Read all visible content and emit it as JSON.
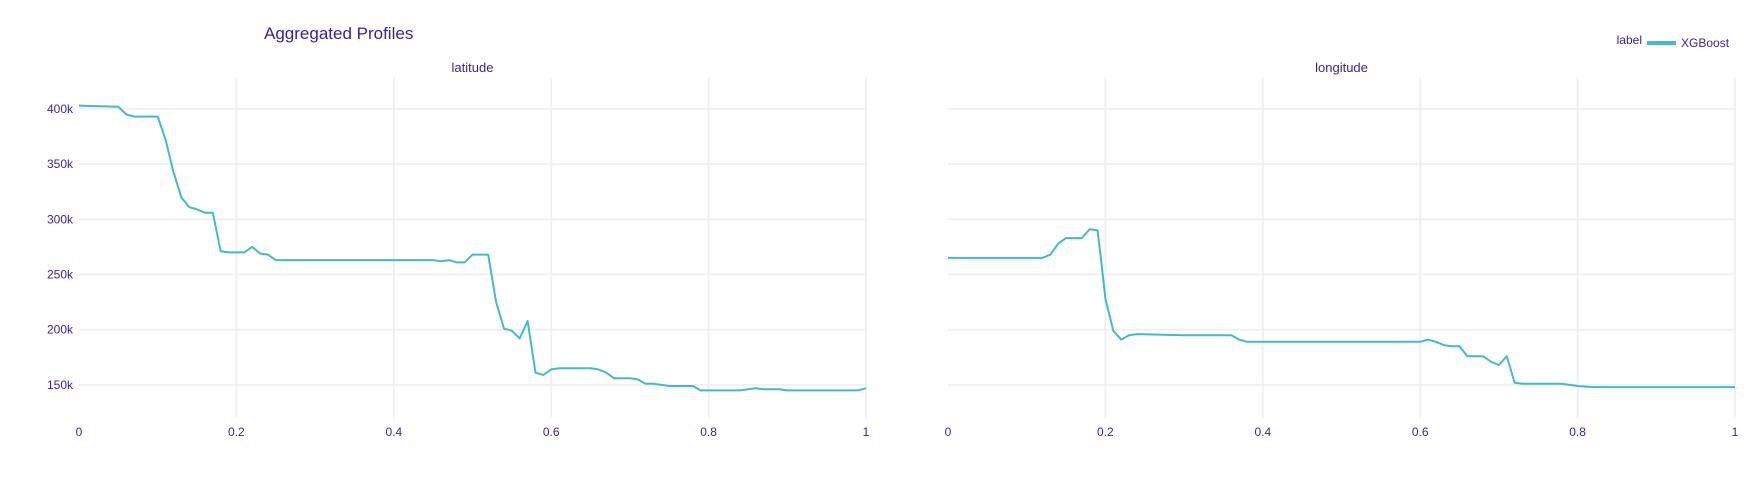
{
  "chart_data": {
    "type": "line",
    "title": "Aggregated Profiles",
    "legend": {
      "title": "label",
      "position": "top-right",
      "entries": [
        "XGBoost"
      ]
    },
    "colors": {
      "line": "#46bac2",
      "text": "#371ea3",
      "grid": "#f0f0f4"
    },
    "y_ticks": [
      150000,
      200000,
      250000,
      300000,
      350000,
      400000
    ],
    "y_tick_labels": [
      "150k",
      "200k",
      "250k",
      "300k",
      "350k",
      "400k"
    ],
    "ylim": [
      120000,
      428000
    ],
    "x_ticks": [
      0,
      0.2,
      0.4,
      0.6,
      0.8,
      1
    ],
    "x_tick_labels": [
      "0",
      "0.2",
      "0.4",
      "0.6",
      "0.8",
      "1"
    ],
    "xlim": [
      0,
      1
    ],
    "grid": true,
    "panels": [
      {
        "subtitle": "latitude",
        "series": [
          {
            "name": "XGBoost",
            "x": [
              0,
              0.05,
              0.06,
              0.07,
              0.1,
              0.11,
              0.12,
              0.13,
              0.14,
              0.15,
              0.16,
              0.17,
              0.18,
              0.19,
              0.21,
              0.22,
              0.23,
              0.24,
              0.25,
              0.3,
              0.35,
              0.4,
              0.45,
              0.46,
              0.47,
              0.48,
              0.49,
              0.5,
              0.51,
              0.52,
              0.53,
              0.54,
              0.55,
              0.56,
              0.57,
              0.58,
              0.59,
              0.6,
              0.61,
              0.62,
              0.65,
              0.66,
              0.67,
              0.68,
              0.7,
              0.71,
              0.72,
              0.73,
              0.74,
              0.75,
              0.78,
              0.79,
              0.8,
              0.84,
              0.85,
              0.86,
              0.87,
              0.88,
              0.89,
              0.9,
              0.95,
              0.99,
              1
            ],
            "y": [
              403000,
              402000,
              395000,
              393000,
              393000,
              372000,
              343000,
              320000,
              311000,
              309000,
              306000,
              306000,
              271000,
              270000,
              270000,
              275000,
              269000,
              268000,
              263000,
              263000,
              263000,
              263000,
              263000,
              262000,
              263000,
              261000,
              261000,
              268000,
              268000,
              268000,
              225000,
              201000,
              199000,
              192000,
              208000,
              161000,
              159000,
              164000,
              165000,
              165000,
              165000,
              164000,
              161000,
              156000,
              156000,
              155000,
              151000,
              151000,
              150000,
              149000,
              149000,
              145000,
              145000,
              145000,
              146000,
              147000,
              146000,
              146000,
              146000,
              145000,
              145000,
              145000,
              147000
            ]
          }
        ]
      },
      {
        "subtitle": "longitude",
        "series": [
          {
            "name": "XGBoost",
            "x": [
              0,
              0.05,
              0.1,
              0.12,
              0.13,
              0.14,
              0.15,
              0.16,
              0.17,
              0.18,
              0.19,
              0.195,
              0.2,
              0.21,
              0.22,
              0.23,
              0.24,
              0.3,
              0.35,
              0.36,
              0.37,
              0.38,
              0.45,
              0.55,
              0.59,
              0.6,
              0.61,
              0.62,
              0.63,
              0.64,
              0.65,
              0.66,
              0.67,
              0.68,
              0.69,
              0.7,
              0.71,
              0.72,
              0.73,
              0.75,
              0.78,
              0.8,
              0.82,
              0.9,
              1
            ],
            "y": [
              265000,
              265000,
              265000,
              265000,
              268000,
              278000,
              283000,
              283000,
              283000,
              291000,
              290000,
              260000,
              228000,
              199000,
              191000,
              195000,
              196000,
              195000,
              195000,
              195000,
              191000,
              189000,
              189000,
              189000,
              189000,
              189000,
              191000,
              189000,
              186000,
              185000,
              185000,
              176000,
              176000,
              176000,
              171000,
              168000,
              176000,
              152000,
              151000,
              151000,
              151000,
              149000,
              148000,
              148000,
              148000
            ]
          }
        ]
      }
    ]
  }
}
